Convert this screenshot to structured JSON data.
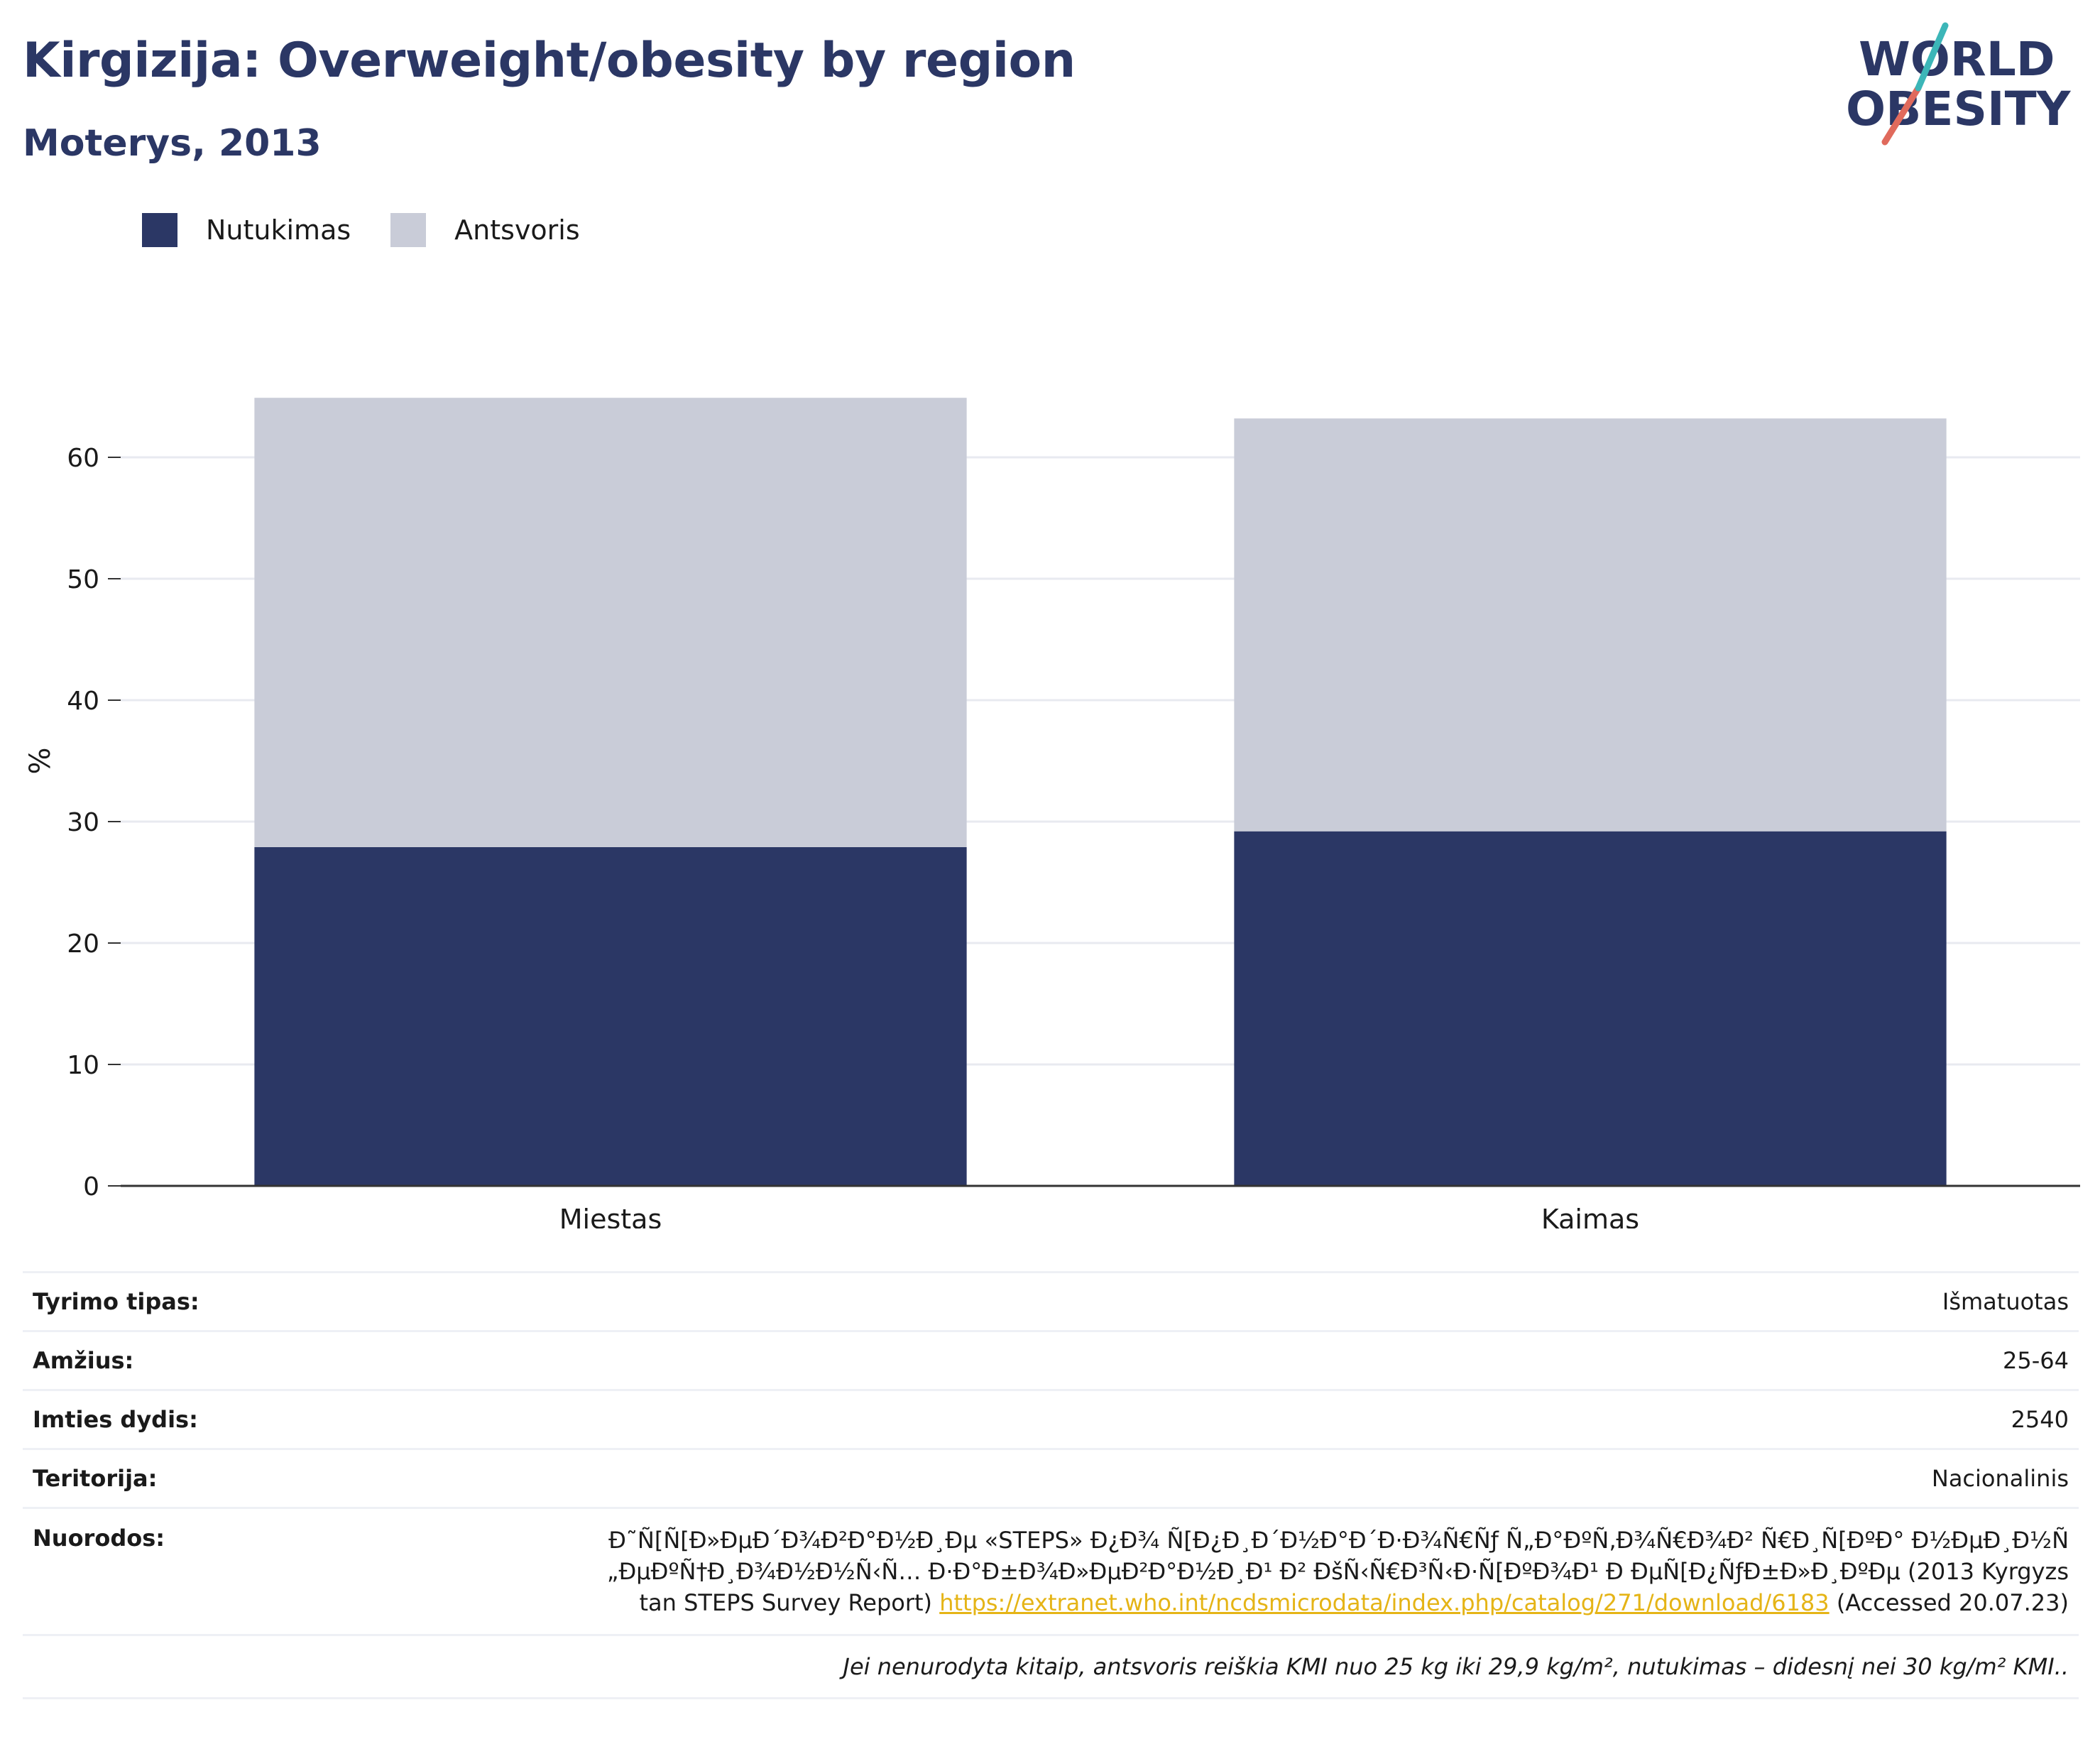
{
  "header": {
    "title": "Kirgizija: Overweight/obesity by region",
    "subtitle": "Moterys, 2013",
    "logo_line1": "WORLD",
    "logo_line2": "OBESITY"
  },
  "legend": [
    {
      "label": "Nutukimas",
      "color": "#2b3765"
    },
    {
      "label": "Antsvoris",
      "color": "#c9ccd8"
    }
  ],
  "chart_data": {
    "type": "bar",
    "stacked": true,
    "categories": [
      "Miestas",
      "Kaimas"
    ],
    "series": [
      {
        "name": "Nutukimas",
        "values": [
          27.9,
          29.2
        ],
        "color": "#2b3765"
      },
      {
        "name": "Antsvoris",
        "values": [
          37.0,
          34.0
        ],
        "color": "#c9ccd8"
      }
    ],
    "ylabel": "%",
    "ylim": [
      0,
      70
    ],
    "yticks": [
      0,
      10,
      20,
      30,
      40,
      50,
      60
    ],
    "grid": true,
    "legend_position": "top-left"
  },
  "info": {
    "survey_type_label": "Tyrimo tipas:",
    "survey_type_value": "Išmatuotas",
    "age_label": "Amžius:",
    "age_value": "25-64",
    "sample_label": "Imties dydis:",
    "sample_value": "2540",
    "territory_label": "Teritorija:",
    "territory_value": "Nacionalinis",
    "refs_label": "Nuorodos:",
    "refs_text_1": "Ð˜Ñ[Ñ[Ð»ÐµÐ´Ð¾Ð²Ð°Ð½Ð¸Ðµ «STEPS» Ð¿Ð¾ Ñ[Ð¿Ð¸Ð´Ð½Ð°Ð´Ð·Ð¾Ñ€Ñƒ Ñ„Ð°ÐºÑ‚Ð¾Ñ€Ð¾Ð² Ñ€Ð¸Ñ[ÐºÐ° Ð½ÐµÐ¸Ð½Ñ„ÐµÐºÑ†Ð¸Ð¾Ð½Ð½Ñ‹Ñ… Ð·Ð°Ð±Ð¾Ð»ÐµÐ²Ð°Ð½Ð¸Ð¹ Ð² ÐšÑ‹Ñ€Ð³Ñ‹Ð·Ñ[ÐºÐ¾Ð¹ Ð ÐµÑ[Ð¿ÑƒÐ±Ð»Ð¸ÐºÐµ (2013 Kyrgyzstan STEPS Survey Report)",
    "refs_link": "https://extranet.who.int/ncdsmicrodata/index.php/catalog/271/download/6183",
    "refs_text_2": "(Accessed 20.07.23)",
    "note": "Jei nenurodyta kitaip, antsvoris reiškia KMI nuo 25 kg iki 29,9 kg/m², nutukimas – didesnį nei 30 kg/m² KMI.."
  }
}
